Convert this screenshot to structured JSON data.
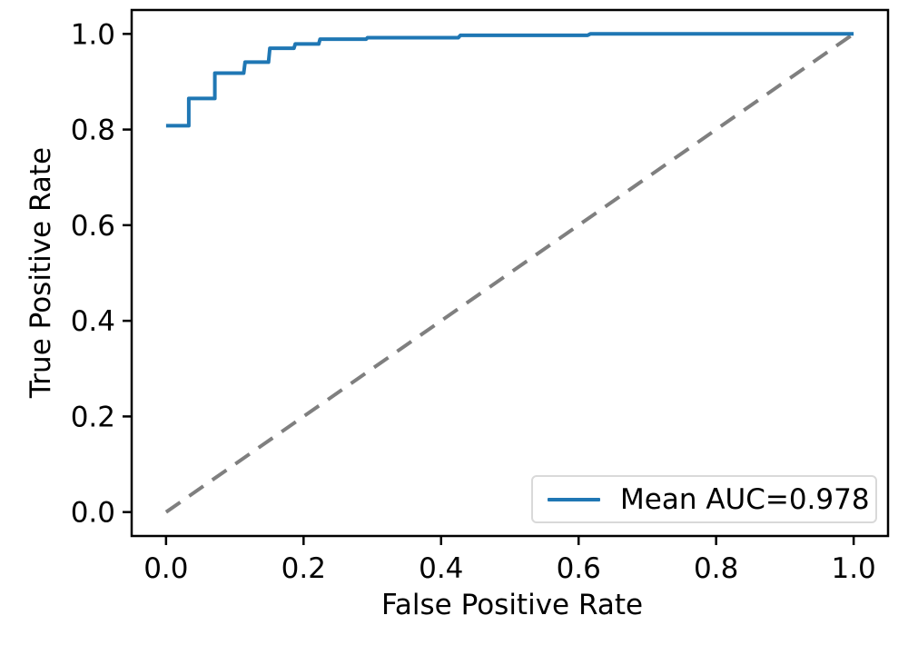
{
  "figure": {
    "background": "#ffffff",
    "text_color": "#000000",
    "spine_color": "#000000",
    "legend_border_color": "#d9d9d9"
  },
  "chart_data": {
    "type": "line",
    "title": "",
    "xlabel": "False Positive Rate",
    "ylabel": "True Positive Rate",
    "xlim": [
      -0.05,
      1.05
    ],
    "ylim": [
      -0.05,
      1.05
    ],
    "x_ticks": [
      0.0,
      0.2,
      0.4,
      0.6,
      0.8,
      1.0
    ],
    "y_ticks": [
      0.0,
      0.2,
      0.4,
      0.6,
      0.8,
      1.0
    ],
    "x_tick_labels": [
      "0.0",
      "0.2",
      "0.4",
      "0.6",
      "0.8",
      "1.0"
    ],
    "y_tick_labels": [
      "0.0",
      "0.2",
      "0.4",
      "0.6",
      "0.8",
      "1.0"
    ],
    "grid": false,
    "legend": {
      "position": "lower right",
      "entries": [
        {
          "label": "Mean AUC=0.978",
          "color": "#1f77b4",
          "style": "solid"
        }
      ]
    },
    "series": [
      {
        "name": "chance-diagonal",
        "color": "#7f7f7f",
        "style": "dashed",
        "linewidth": 4,
        "points": [
          [
            0.0,
            0.0
          ],
          [
            1.0,
            1.0
          ]
        ]
      },
      {
        "name": "mean-roc-curve",
        "color": "#1f77b4",
        "style": "solid",
        "linewidth": 4,
        "points": [
          [
            0.0,
            0.808
          ],
          [
            0.033,
            0.808
          ],
          [
            0.033,
            0.865
          ],
          [
            0.071,
            0.865
          ],
          [
            0.071,
            0.918
          ],
          [
            0.113,
            0.918
          ],
          [
            0.115,
            0.941
          ],
          [
            0.149,
            0.941
          ],
          [
            0.151,
            0.97
          ],
          [
            0.186,
            0.97
          ],
          [
            0.188,
            0.979
          ],
          [
            0.222,
            0.979
          ],
          [
            0.224,
            0.989
          ],
          [
            0.291,
            0.989
          ],
          [
            0.293,
            0.992
          ],
          [
            0.425,
            0.992
          ],
          [
            0.428,
            0.997
          ],
          [
            0.613,
            0.997
          ],
          [
            0.617,
            1.0
          ],
          [
            1.0,
            1.0
          ]
        ]
      }
    ]
  }
}
